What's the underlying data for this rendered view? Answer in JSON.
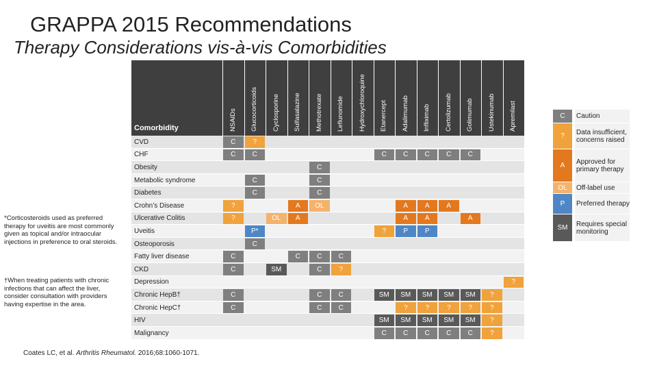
{
  "title": "GRAPPA 2015 Recommendations",
  "subtitle": "Therapy Considerations vis-à-vis Comorbidities",
  "table": {
    "header": "Comorbidity",
    "drugs": [
      "NSAIDs",
      "Glucocorticoids",
      "Cyclosporine",
      "Sulfasalazine",
      "Methotrexate",
      "Leflunomide",
      "Hydroxychloroquine",
      "Etanercept",
      "Adalimumab",
      "Infliximab",
      "Certolizumab",
      "Golimumab",
      "Ustekinumab",
      "Apremilast"
    ],
    "rows": [
      {
        "label": "CVD",
        "cells": [
          "C",
          "?",
          null,
          null,
          null,
          null,
          null,
          null,
          null,
          null,
          null,
          null,
          null,
          null
        ]
      },
      {
        "label": "CHF",
        "cells": [
          "C",
          "C",
          null,
          null,
          null,
          null,
          null,
          "C",
          "C",
          "C",
          "C",
          "C",
          null,
          null
        ]
      },
      {
        "label": "Obesity",
        "cells": [
          null,
          null,
          null,
          null,
          "C",
          null,
          null,
          null,
          null,
          null,
          null,
          null,
          null,
          null
        ]
      },
      {
        "label": "Metabolic syndrome",
        "cells": [
          null,
          "C",
          null,
          null,
          "C",
          null,
          null,
          null,
          null,
          null,
          null,
          null,
          null,
          null
        ]
      },
      {
        "label": "Diabetes",
        "cells": [
          null,
          "C",
          null,
          null,
          "C",
          null,
          null,
          null,
          null,
          null,
          null,
          null,
          null,
          null
        ]
      },
      {
        "label": "Crohn’s Disease",
        "cells": [
          "?",
          null,
          null,
          "A",
          "OL",
          null,
          null,
          null,
          "A",
          "A",
          "A",
          null,
          null,
          null
        ]
      },
      {
        "label": "Ulcerative Colitis",
        "cells": [
          "?",
          null,
          "OL",
          "A",
          null,
          null,
          null,
          null,
          "A",
          "A",
          null,
          "A",
          null,
          null
        ]
      },
      {
        "label": "Uveitis",
        "cells": [
          null,
          "P*",
          null,
          null,
          null,
          null,
          null,
          "?",
          "P",
          "P",
          null,
          null,
          null,
          null
        ]
      },
      {
        "label": "Osteoporosis",
        "cells": [
          null,
          "C",
          null,
          null,
          null,
          null,
          null,
          null,
          null,
          null,
          null,
          null,
          null,
          null
        ]
      },
      {
        "label": "Fatty liver disease",
        "cells": [
          "C",
          null,
          null,
          "C",
          "C",
          "C",
          null,
          null,
          null,
          null,
          null,
          null,
          null,
          null
        ]
      },
      {
        "label": "CKD",
        "cells": [
          "C",
          null,
          "SM",
          null,
          "C",
          "?",
          null,
          null,
          null,
          null,
          null,
          null,
          null,
          null
        ]
      },
      {
        "label": "Depression",
        "cells": [
          null,
          null,
          null,
          null,
          null,
          null,
          null,
          null,
          null,
          null,
          null,
          null,
          null,
          "?"
        ]
      },
      {
        "label": "Chronic HepB†",
        "cells": [
          "C",
          null,
          null,
          null,
          "C",
          "C",
          null,
          "SM",
          "SM",
          "SM",
          "SM",
          "SM",
          "?",
          null
        ]
      },
      {
        "label": "Chronic HepC†",
        "cells": [
          "C",
          null,
          null,
          null,
          "C",
          "C",
          null,
          null,
          "?",
          "?",
          "?",
          "?",
          "?",
          null
        ]
      },
      {
        "label": "HIV",
        "cells": [
          null,
          null,
          null,
          null,
          null,
          null,
          null,
          "SM",
          "SM",
          "SM",
          "SM",
          "SM",
          "?",
          null
        ]
      },
      {
        "label": "Malignancy",
        "cells": [
          null,
          null,
          null,
          null,
          null,
          null,
          null,
          "C",
          "C",
          "C",
          "C",
          "C",
          "?",
          null
        ]
      }
    ]
  },
  "code_colors": {
    "C": "#7f7f7f",
    "?": "#f0a23c",
    "A": "#e3781e",
    "OL": "#f5b26b",
    "P": "#4f86c6",
    "SM": "#595959"
  },
  "legend": [
    {
      "code": "C",
      "label": "Caution"
    },
    {
      "code": "?",
      "label": "Data insufficient, concerns raised"
    },
    {
      "code": "A",
      "label": "Approved for primary therapy"
    },
    {
      "code": "OL",
      "label": "Off-label use"
    },
    {
      "code": "P",
      "label": "Preferred therapy"
    },
    {
      "code": "SM",
      "label": "Requires special monitoring"
    }
  ],
  "notes": [
    "*Corticosteroids used as preferred therapy for uveitis are most commonly given as topical and/or intraocular injections in preference to oral steroids.",
    "†When treating patients with chronic infections that can affect the liver, consider consultation with providers having expertise in the area."
  ],
  "citation": {
    "authors": "Coates LC, et al.",
    "journal": "Arthritis Rheumatol.",
    "details": "2016;68:1060-1071."
  }
}
